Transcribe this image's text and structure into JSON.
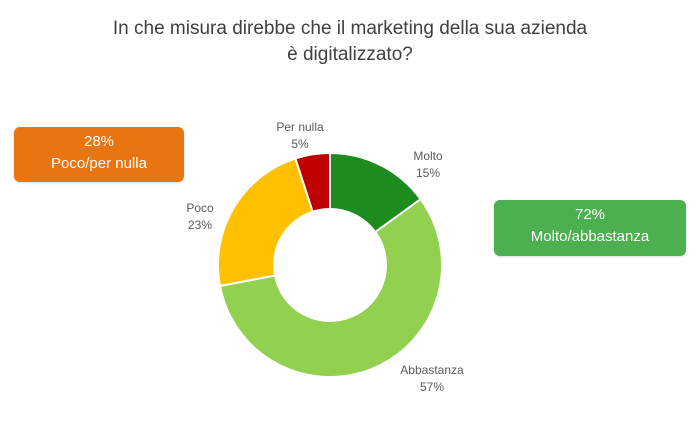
{
  "title": {
    "line1": "In che misura direbbe che il marketing della sua azienda",
    "line2": "è digitalizzato?"
  },
  "summary_boxes": {
    "left": {
      "percent": "28%",
      "label": "Poco/per nulla",
      "color": "#E87511"
    },
    "right": {
      "percent": "72%",
      "label": "Molto/abbastanza",
      "color": "#4CAF50"
    }
  },
  "chart_data": {
    "type": "pie",
    "donut": true,
    "categories": [
      "Molto",
      "Abbastanza",
      "Poco",
      "Per nulla"
    ],
    "values": [
      15,
      57,
      23,
      5
    ],
    "value_labels": [
      "15%",
      "57%",
      "23%",
      "5%"
    ],
    "colors": [
      "#1E8B1E",
      "#92D050",
      "#FFC000",
      "#C00000"
    ],
    "title": "In che misura direbbe che il marketing della sua azienda è digitalizzato?"
  }
}
